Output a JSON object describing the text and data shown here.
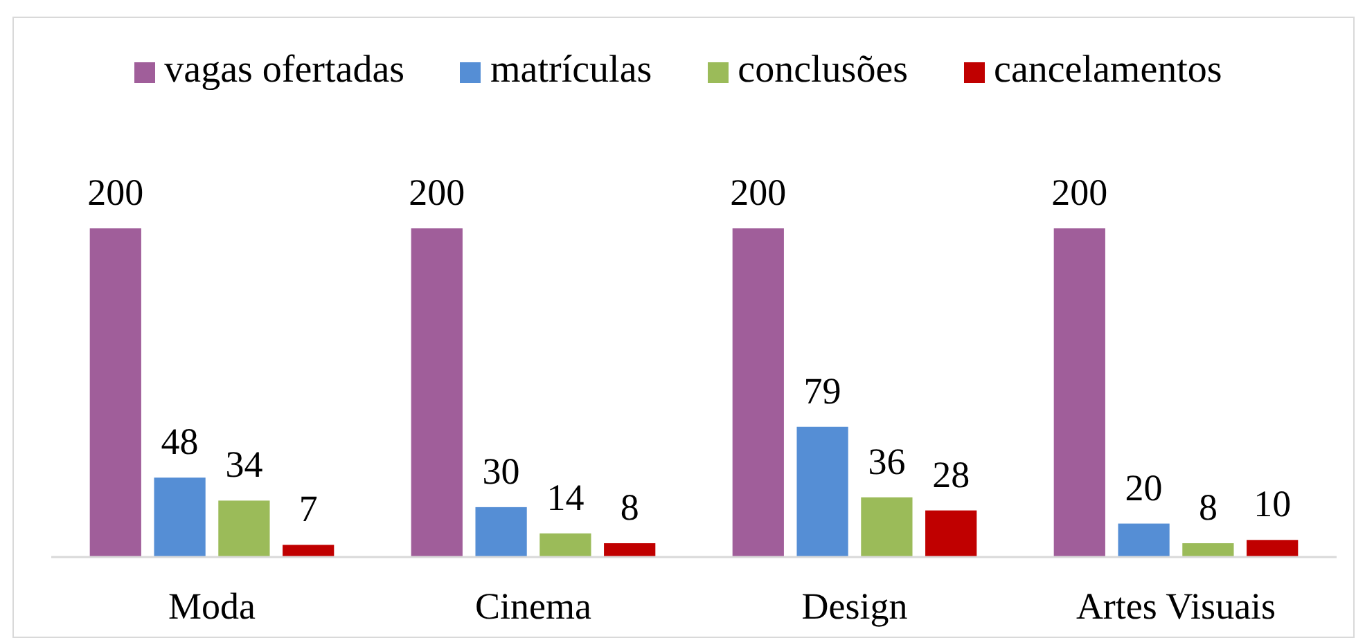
{
  "chart_data": {
    "type": "bar",
    "categories": [
      "Moda",
      "Cinema",
      "Design",
      "Artes Visuais"
    ],
    "series": [
      {
        "name": "vagas ofertadas",
        "color": "#a05e9a",
        "values": [
          200,
          200,
          200,
          200
        ]
      },
      {
        "name": "matrículas",
        "color": "#558ed5",
        "values": [
          48,
          30,
          79,
          20
        ]
      },
      {
        "name": "conclusões",
        "color": "#9bbb59",
        "values": [
          34,
          14,
          36,
          8
        ]
      },
      {
        "name": "cancelamentos",
        "color": "#c00000",
        "values": [
          7,
          8,
          28,
          10
        ]
      }
    ],
    "data_labels": true,
    "legend": "top"
  }
}
